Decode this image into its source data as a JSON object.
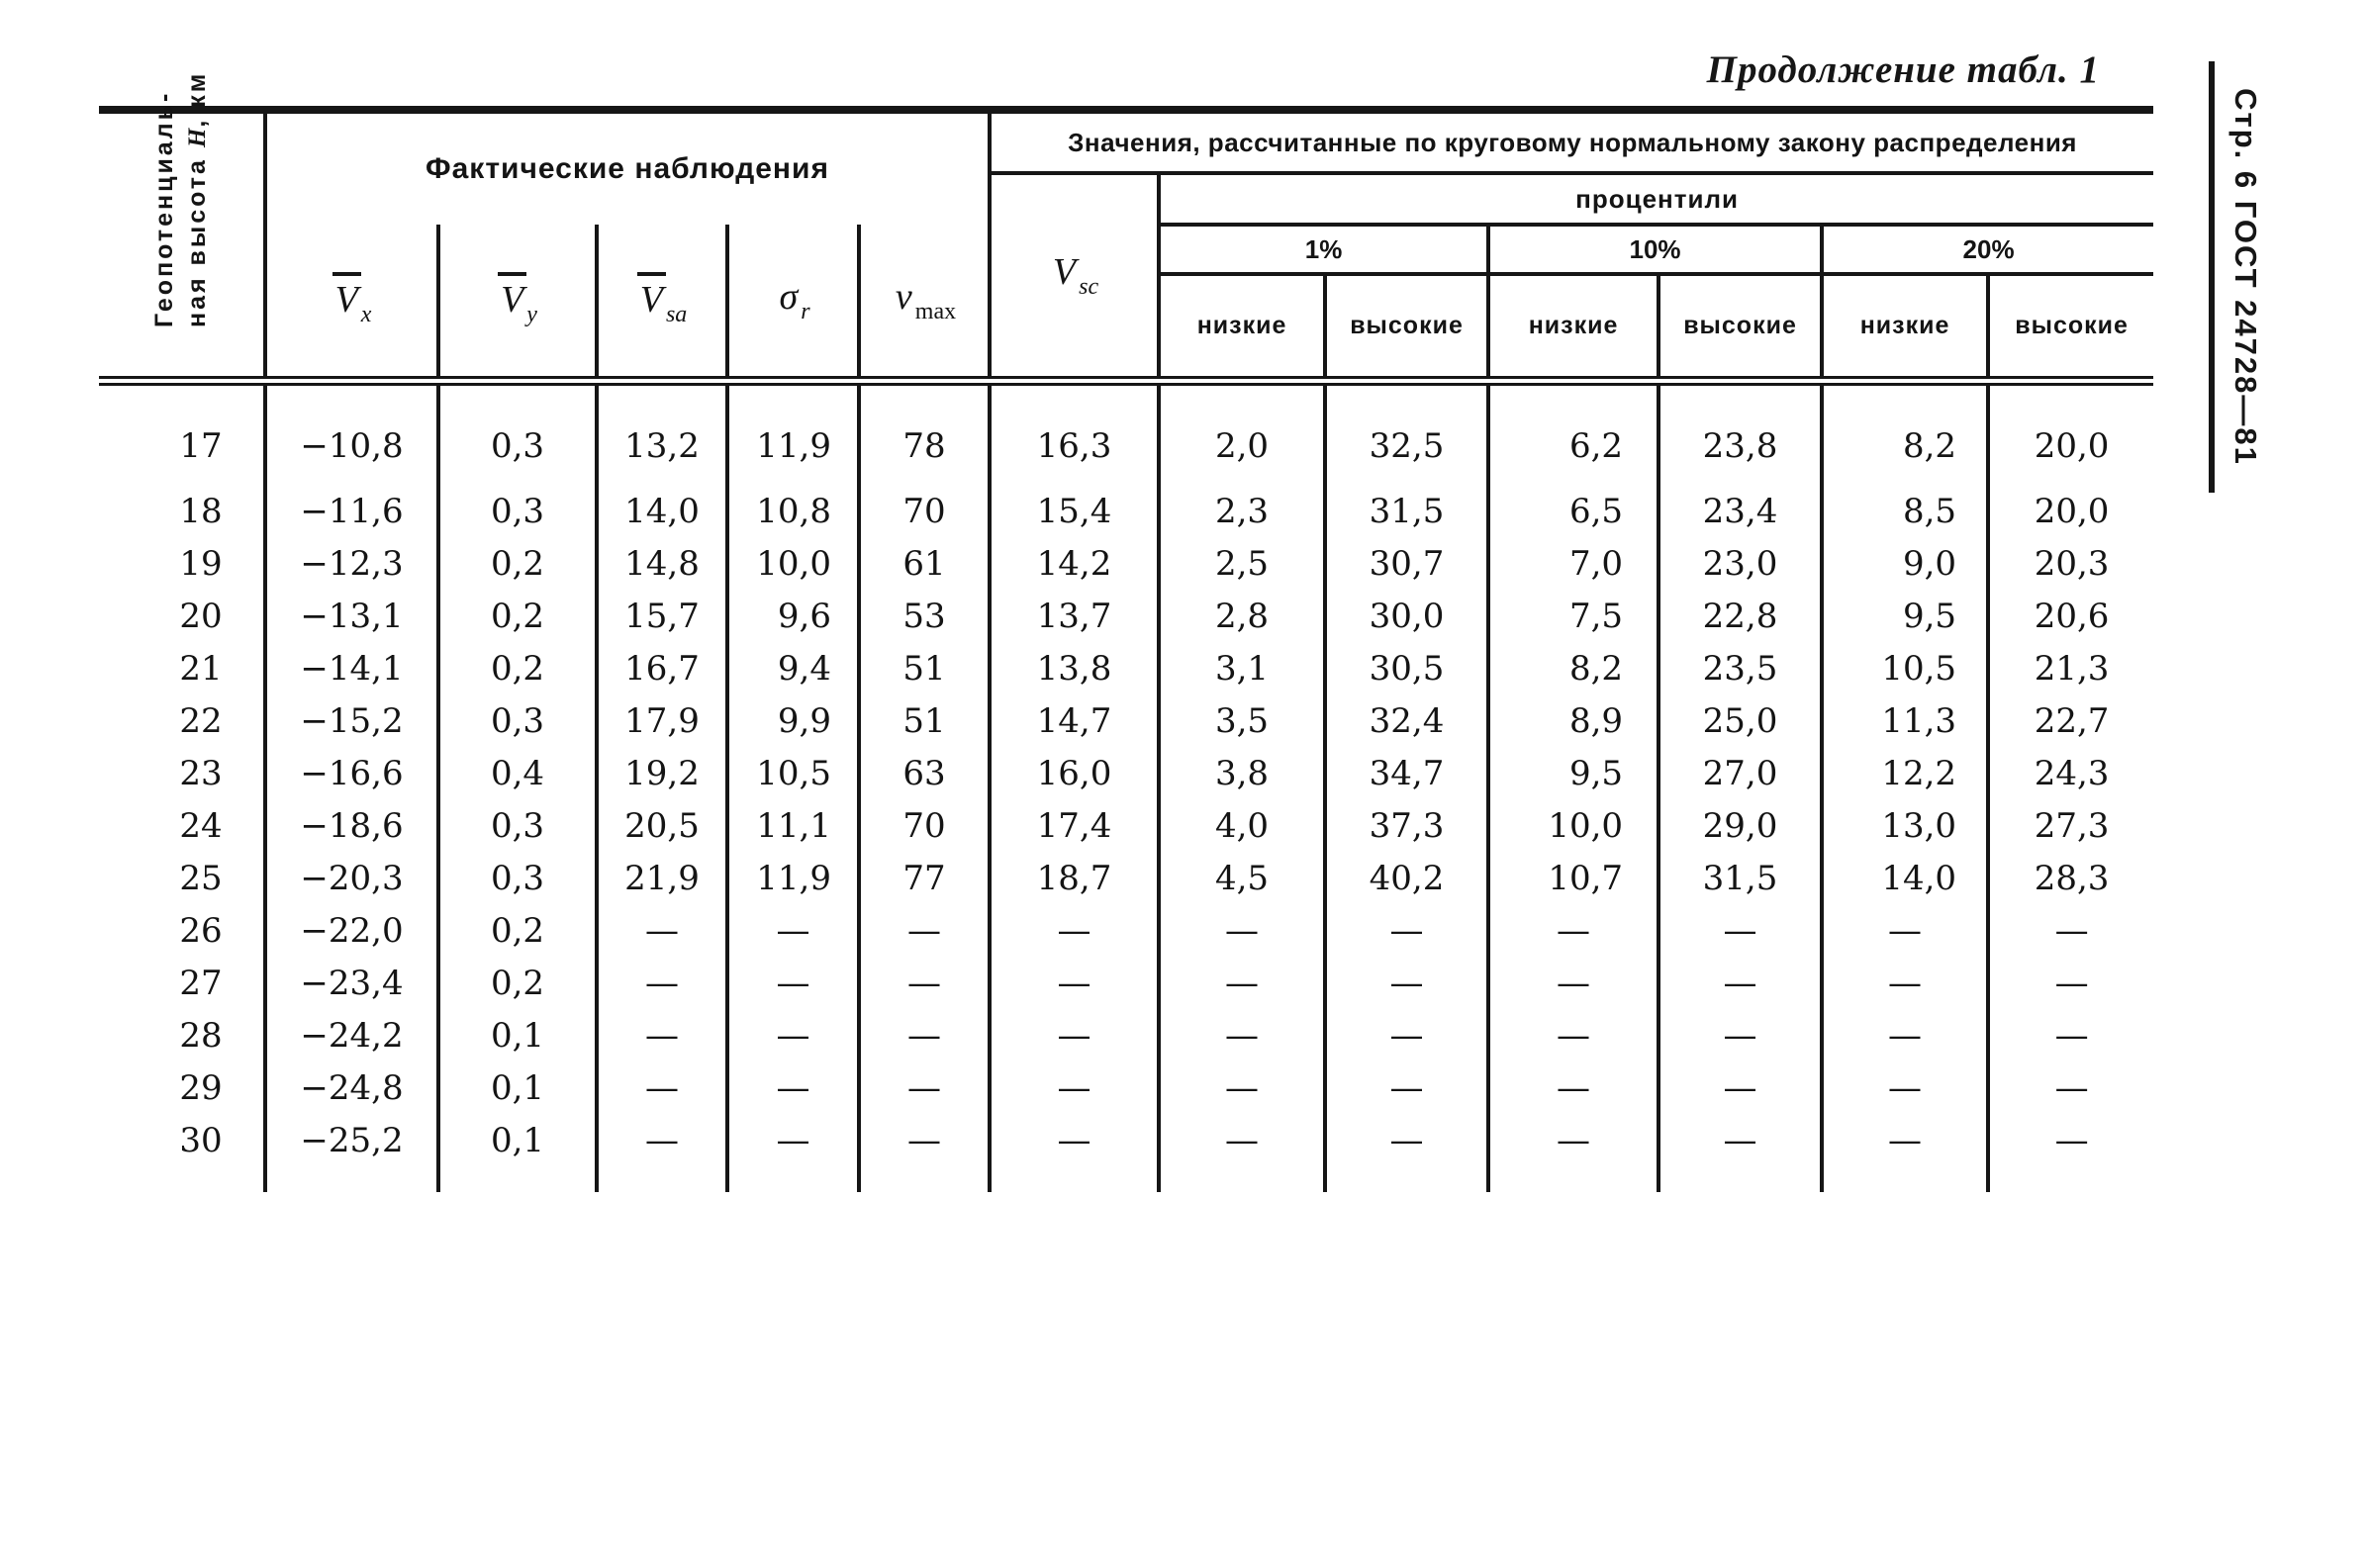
{
  "page": {
    "continuation_label": "Продолжение табл. 1",
    "margin_label": "Стр. 6 ГОСТ 24728—81"
  },
  "table": {
    "row_header": {
      "line1": "Геопотенциаль-",
      "line2_pre": "ная высота ",
      "line2_var": "H",
      "line2_post": ", км"
    },
    "groups": {
      "observed": "Фактические наблюдения",
      "computed": "Значения, рассчитанные по круговому нормальному закону распределения",
      "percentiles": "процентили",
      "percent_levels": [
        "1%",
        "10%",
        "20%"
      ],
      "low_label": "низкие",
      "high_label": "высокие"
    },
    "math_columns": [
      {
        "base": "V",
        "bar": true,
        "sub": "x",
        "sub_italic": true
      },
      {
        "base": "V",
        "bar": true,
        "sub": "y",
        "sub_italic": true
      },
      {
        "base": "V",
        "bar": true,
        "sub": "sa",
        "sub_italic": true
      },
      {
        "base": "σ",
        "bar": false,
        "sub": "r",
        "sub_italic": true
      },
      {
        "base": "v",
        "bar": false,
        "sub": "max",
        "sub_italic": false
      }
    ],
    "vsc_column": {
      "base": "V",
      "bar": false,
      "sub": "sc",
      "sub_italic": true
    },
    "rows": [
      {
        "h": "17",
        "values": [
          "−10,8",
          "0,3",
          "13,2",
          "11,9",
          "78",
          "16,3",
          "2,0",
          "32,5",
          "6,2",
          "23,8",
          "8,2",
          "20,0"
        ]
      },
      {
        "h": "18",
        "values": [
          "−11,6",
          "0,3",
          "14,0",
          "10,8",
          "70",
          "15,4",
          "2,3",
          "31,5",
          "6,5",
          "23,4",
          "8,5",
          "20,0"
        ]
      },
      {
        "h": "19",
        "values": [
          "−12,3",
          "0,2",
          "14,8",
          "10,0",
          "61",
          "14,2",
          "2,5",
          "30,7",
          "7,0",
          "23,0",
          "9,0",
          "20,3"
        ]
      },
      {
        "h": "20",
        "values": [
          "−13,1",
          "0,2",
          "15,7",
          "9,6",
          "53",
          "13,7",
          "2,8",
          "30,0",
          "7,5",
          "22,8",
          "9,5",
          "20,6"
        ]
      },
      {
        "h": "21",
        "values": [
          "−14,1",
          "0,2",
          "16,7",
          "9,4",
          "51",
          "13,8",
          "3,1",
          "30,5",
          "8,2",
          "23,5",
          "10,5",
          "21,3"
        ]
      },
      {
        "h": "22",
        "values": [
          "−15,2",
          "0,3",
          "17,9",
          "9,9",
          "51",
          "14,7",
          "3,5",
          "32,4",
          "8,9",
          "25,0",
          "11,3",
          "22,7"
        ]
      },
      {
        "h": "23",
        "values": [
          "−16,6",
          "0,4",
          "19,2",
          "10,5",
          "63",
          "16,0",
          "3,8",
          "34,7",
          "9,5",
          "27,0",
          "12,2",
          "24,3"
        ]
      },
      {
        "h": "24",
        "values": [
          "−18,6",
          "0,3",
          "20,5",
          "11,1",
          "70",
          "17,4",
          "4,0",
          "37,3",
          "10,0",
          "29,0",
          "13,0",
          "27,3"
        ]
      },
      {
        "h": "25",
        "values": [
          "−20,3",
          "0,3",
          "21,9",
          "11,9",
          "77",
          "18,7",
          "4,5",
          "40,2",
          "10,7",
          "31,5",
          "14,0",
          "28,3"
        ]
      },
      {
        "h": "26",
        "values": [
          "−22,0",
          "0,2",
          "—",
          "—",
          "—",
          "—",
          "—",
          "—",
          "—",
          "—",
          "—",
          "—"
        ]
      },
      {
        "h": "27",
        "values": [
          "−23,4",
          "0,2",
          "—",
          "—",
          "—",
          "—",
          "—",
          "—",
          "—",
          "—",
          "—",
          "—"
        ]
      },
      {
        "h": "28",
        "values": [
          "−24,2",
          "0,1",
          "—",
          "—",
          "—",
          "—",
          "—",
          "—",
          "—",
          "—",
          "—",
          "—"
        ]
      },
      {
        "h": "29",
        "values": [
          "−24,8",
          "0,1",
          "—",
          "—",
          "—",
          "—",
          "—",
          "—",
          "—",
          "—",
          "—",
          "—"
        ]
      },
      {
        "h": "30",
        "values": [
          "−25,2",
          "0,1",
          "—",
          "—",
          "—",
          "—",
          "—",
          "—",
          "—",
          "—",
          "—",
          "—"
        ]
      }
    ]
  }
}
